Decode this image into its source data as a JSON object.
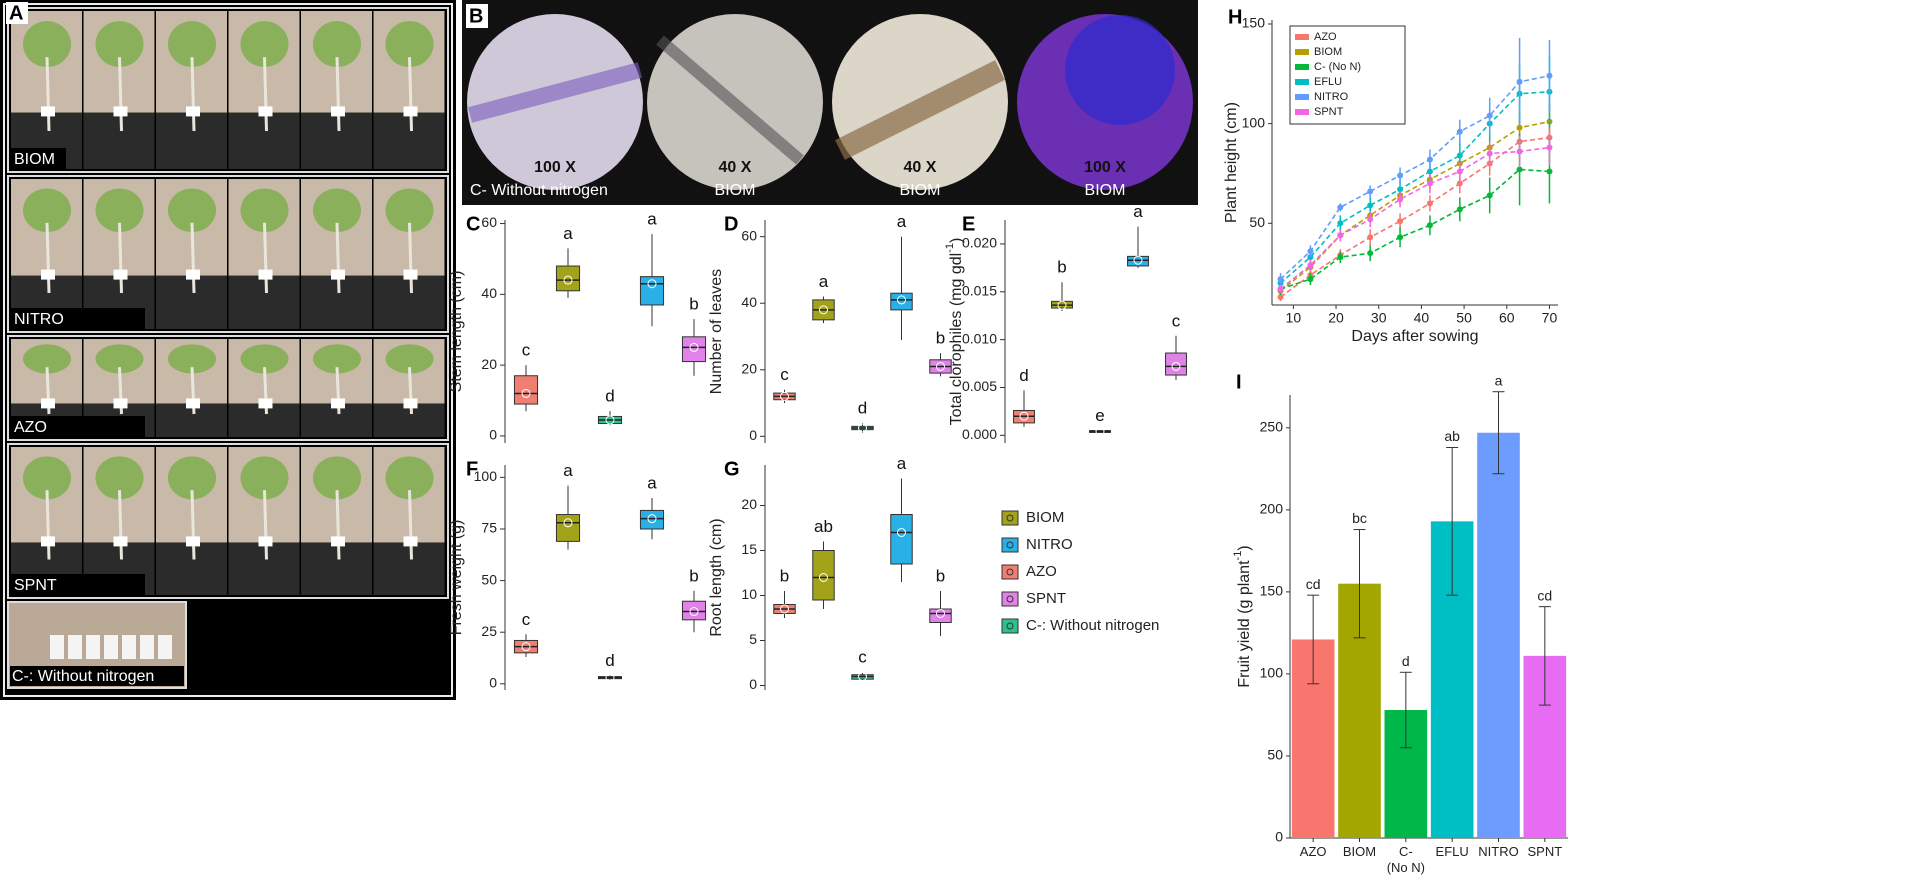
{
  "photos": {
    "A": {
      "panel": "A",
      "rows": [
        "BIOM",
        "NITRO",
        "AZO",
        "SPNT",
        "C-: Without nitrogen"
      ]
    },
    "B": {
      "panel": "B",
      "magnifications": [
        "100 X",
        "40 X",
        "40 X",
        "100 X"
      ],
      "captions": [
        "C- Without nitrogen",
        "BIOM",
        "BIOM",
        "BIOM"
      ]
    }
  },
  "legend": {
    "items": [
      {
        "name": "BIOM",
        "color": "#a3a31a"
      },
      {
        "name": "NITRO",
        "color": "#29b0e6"
      },
      {
        "name": "AZO",
        "color": "#f07f72"
      },
      {
        "name": "SPNT",
        "color": "#e082e8"
      },
      {
        "name": "C-: Without nitrogen",
        "color": "#2ec28a"
      }
    ]
  },
  "chart_data": [
    {
      "type": "box",
      "panel": "C",
      "ylabel": "Stem length  (cm)",
      "ylim": [
        -2,
        61
      ],
      "yticks": [
        0,
        20,
        40,
        60
      ],
      "series": [
        {
          "color": "#f07f72",
          "min": 7,
          "q1": 9,
          "median": 12,
          "q3": 17,
          "max": 20,
          "letter": "c"
        },
        {
          "color": "#a3a31a",
          "min": 39,
          "q1": 41,
          "median": 44,
          "q3": 48,
          "max": 53,
          "letter": "a"
        },
        {
          "color": "#2ec28a",
          "min": 3,
          "q1": 3.5,
          "median": 4.5,
          "q3": 5.5,
          "max": 7,
          "letter": "d"
        },
        {
          "color": "#29b0e6",
          "min": 31,
          "q1": 37,
          "median": 43,
          "q3": 45,
          "max": 57,
          "letter": "a"
        },
        {
          "color": "#e082e8",
          "min": 17,
          "q1": 21,
          "median": 25,
          "q3": 28,
          "max": 33,
          "letter": "b"
        }
      ]
    },
    {
      "type": "box",
      "panel": "D",
      "ylabel": "Number of leaves",
      "ylim": [
        -2,
        65
      ],
      "yticks": [
        0,
        20,
        40,
        60
      ],
      "series": [
        {
          "color": "#f07f72",
          "min": 10,
          "q1": 11,
          "median": 12,
          "q3": 13,
          "max": 14,
          "letter": "c"
        },
        {
          "color": "#a3a31a",
          "min": 34,
          "q1": 35,
          "median": 38,
          "q3": 41,
          "max": 42,
          "letter": "a"
        },
        {
          "color": "#2ec28a",
          "min": 1,
          "q1": 2,
          "median": 2.5,
          "q3": 3,
          "max": 4,
          "letter": "d"
        },
        {
          "color": "#29b0e6",
          "min": 29,
          "q1": 38,
          "median": 41,
          "q3": 43,
          "max": 60,
          "letter": "a"
        },
        {
          "color": "#e082e8",
          "min": 18,
          "q1": 19,
          "median": 21,
          "q3": 23,
          "max": 25,
          "letter": "b"
        }
      ]
    },
    {
      "type": "box",
      "panel": "E",
      "ylabel": "Total clorophiles (mg gdl",
      "ylabel_sup": "-1",
      "ylabel_end": ")",
      "ylim": [
        -0.0008,
        0.0225
      ],
      "yticks": [
        {
          "value": 0,
          "label": "0.000"
        },
        {
          "value": 0.005,
          "label": "0.005"
        },
        {
          "value": 0.01,
          "label": "0.010"
        },
        {
          "value": 0.015,
          "label": "0.015"
        },
        {
          "value": 0.02,
          "label": "0.020"
        }
      ],
      "series": [
        {
          "color": "#f07f72",
          "min": 0.0009,
          "q1": 0.0013,
          "median": 0.002,
          "q3": 0.0026,
          "max": 0.0047,
          "letter": "d"
        },
        {
          "color": "#a3a31a",
          "min": 0.013,
          "q1": 0.0133,
          "median": 0.0136,
          "q3": 0.014,
          "max": 0.016,
          "letter": "b"
        },
        {
          "color": "#2ec28a",
          "min": 0.0003,
          "q1": 0.0003,
          "median": 0.0004,
          "q3": 0.0005,
          "max": 0.0005,
          "letter": "e"
        },
        {
          "color": "#29b0e6",
          "min": 0.0175,
          "q1": 0.0177,
          "median": 0.0183,
          "q3": 0.0187,
          "max": 0.0218,
          "letter": "a"
        },
        {
          "color": "#e082e8",
          "min": 0.0058,
          "q1": 0.0063,
          "median": 0.0072,
          "q3": 0.0086,
          "max": 0.0104,
          "letter": "c"
        }
      ]
    },
    {
      "type": "box",
      "panel": "F",
      "ylabel": "Fresh weight (g)",
      "ylim": [
        -3,
        106
      ],
      "yticks": [
        0,
        25,
        50,
        75,
        100
      ],
      "series": [
        {
          "color": "#f07f72",
          "min": 13,
          "q1": 15,
          "median": 18,
          "q3": 21,
          "max": 24,
          "letter": "c"
        },
        {
          "color": "#a3a31a",
          "min": 65,
          "q1": 69,
          "median": 78,
          "q3": 82,
          "max": 96,
          "letter": "a"
        },
        {
          "color": "#2ec28a",
          "min": 2,
          "q1": 2.5,
          "median": 3,
          "q3": 3.5,
          "max": 4,
          "letter": "d"
        },
        {
          "color": "#29b0e6",
          "min": 70,
          "q1": 75,
          "median": 80,
          "q3": 84,
          "max": 90,
          "letter": "a"
        },
        {
          "color": "#e082e8",
          "min": 25,
          "q1": 31,
          "median": 35,
          "q3": 40,
          "max": 45,
          "letter": "b"
        }
      ]
    },
    {
      "type": "box",
      "panel": "G",
      "ylabel": "Root length (cm)",
      "ylim": [
        -0.5,
        24.5
      ],
      "yticks": [
        0,
        5,
        10,
        15,
        20
      ],
      "series": [
        {
          "color": "#f07f72",
          "min": 7.5,
          "q1": 8,
          "median": 8.5,
          "q3": 9,
          "max": 10.5,
          "letter": "b"
        },
        {
          "color": "#a3a31a",
          "min": 8.5,
          "q1": 9.5,
          "median": 12,
          "q3": 15,
          "max": 16,
          "letter": "ab"
        },
        {
          "color": "#2ec28a",
          "min": 0.5,
          "q1": 0.7,
          "median": 1,
          "q3": 1.2,
          "max": 1.5,
          "letter": "c"
        },
        {
          "color": "#29b0e6",
          "min": 11.5,
          "q1": 13.5,
          "median": 17,
          "q3": 19,
          "max": 23,
          "letter": "a"
        },
        {
          "color": "#e082e8",
          "min": 5.5,
          "q1": 7,
          "median": 8,
          "q3": 8.5,
          "max": 10.5,
          "letter": "b"
        }
      ]
    },
    {
      "type": "line",
      "panel": "H",
      "xlabel": "Days after sowing",
      "ylabel": "Plant height (cm)",
      "x": [
        7,
        14,
        21,
        28,
        35,
        42,
        49,
        56,
        63,
        70
      ],
      "xlim": [
        5,
        72
      ],
      "xticks": [
        10,
        20,
        30,
        40,
        50,
        60,
        70
      ],
      "ylim": [
        9,
        152
      ],
      "yticks": [
        50,
        100,
        150
      ],
      "legend": "top-left",
      "series": [
        {
          "name": "AZO",
          "color": "#f8766d",
          "values": [
            13,
            24,
            34,
            43,
            51,
            60,
            70,
            80,
            91,
            93
          ],
          "errors": [
            2,
            3,
            3,
            4,
            4,
            4,
            5,
            6,
            7,
            8
          ]
        },
        {
          "name": "BIOM",
          "color": "#b79f00",
          "values": [
            16,
            28,
            44,
            54,
            64,
            72,
            80,
            88,
            98,
            101
          ],
          "errors": [
            2,
            3,
            3,
            4,
            4,
            5,
            5,
            6,
            8,
            9
          ]
        },
        {
          "name": "C- (No N)",
          "color": "#00ba38",
          "values": [
            17,
            22,
            33,
            35,
            43,
            49,
            57,
            64,
            77,
            76
          ],
          "errors": [
            3,
            3,
            3,
            4,
            5,
            5,
            6,
            9,
            18,
            16
          ]
        },
        {
          "name": "EFLU",
          "color": "#00bfc4",
          "values": [
            20,
            33,
            50,
            59,
            67,
            76,
            84,
            100,
            115,
            116
          ],
          "errors": [
            3,
            3,
            4,
            4,
            5,
            6,
            7,
            9,
            15,
            18
          ]
        },
        {
          "name": "NITRO",
          "color": "#619cff",
          "values": [
            22,
            36,
            58,
            66,
            74,
            82,
            96,
            104,
            121,
            124
          ],
          "errors": [
            3,
            3,
            2,
            3,
            4,
            5,
            6,
            9,
            22,
            18
          ]
        },
        {
          "name": "SPNT",
          "color": "#f564e3",
          "values": [
            17,
            29,
            44,
            52,
            62,
            70,
            76,
            85,
            86,
            88
          ],
          "errors": [
            2,
            3,
            3,
            4,
            4,
            5,
            5,
            6,
            8,
            9
          ]
        }
      ]
    },
    {
      "type": "bar",
      "panel": "I",
      "ylabel": "Fruit yield (g plant",
      "ylabel_sup": "-1",
      "ylabel_end": ")",
      "categories": [
        "AZO",
        "BIOM",
        "C-\n(No N)",
        "EFLU",
        "NITRO",
        "SPNT"
      ],
      "colors": [
        "#f8766d",
        "#a3a500",
        "#00b84a",
        "#00bfc4",
        "#6d9cff",
        "#e76bf3"
      ],
      "values": [
        121,
        155,
        78,
        193,
        247,
        111
      ],
      "errors": [
        27,
        33,
        23,
        45,
        25,
        30
      ],
      "letters": [
        "cd",
        "bc",
        "d",
        "ab",
        "a",
        "cd"
      ],
      "ylim": [
        0,
        270
      ],
      "yticks": [
        0,
        50,
        100,
        150,
        200,
        250
      ]
    }
  ]
}
